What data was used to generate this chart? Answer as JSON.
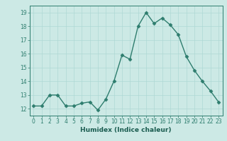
{
  "x": [
    0,
    1,
    2,
    3,
    4,
    5,
    6,
    7,
    8,
    9,
    10,
    11,
    12,
    13,
    14,
    15,
    16,
    17,
    18,
    19,
    20,
    21,
    22,
    23
  ],
  "y": [
    12.2,
    12.2,
    13.0,
    13.0,
    12.2,
    12.2,
    12.4,
    12.5,
    11.9,
    12.7,
    14.0,
    15.9,
    15.6,
    18.0,
    19.0,
    18.2,
    18.6,
    18.1,
    17.4,
    15.8,
    14.8,
    14.0,
    13.3,
    12.5
  ],
  "line_color": "#2e7d6e",
  "marker": "D",
  "markersize": 2.5,
  "bg_color": "#cce9e5",
  "grid_color": "#aed8d4",
  "xlabel": "Humidex (Indice chaleur)",
  "xlim": [
    -0.5,
    23.5
  ],
  "ylim": [
    11.5,
    19.5
  ],
  "yticks": [
    12,
    13,
    14,
    15,
    16,
    17,
    18,
    19
  ],
  "xticks": [
    0,
    1,
    2,
    3,
    4,
    5,
    6,
    7,
    8,
    9,
    10,
    11,
    12,
    13,
    14,
    15,
    16,
    17,
    18,
    19,
    20,
    21,
    22,
    23
  ],
  "tick_color": "#2e7d6e",
  "label_color": "#1a5c50",
  "linewidth": 1.0,
  "tick_fontsize": 5.5,
  "xlabel_fontsize": 6.5
}
